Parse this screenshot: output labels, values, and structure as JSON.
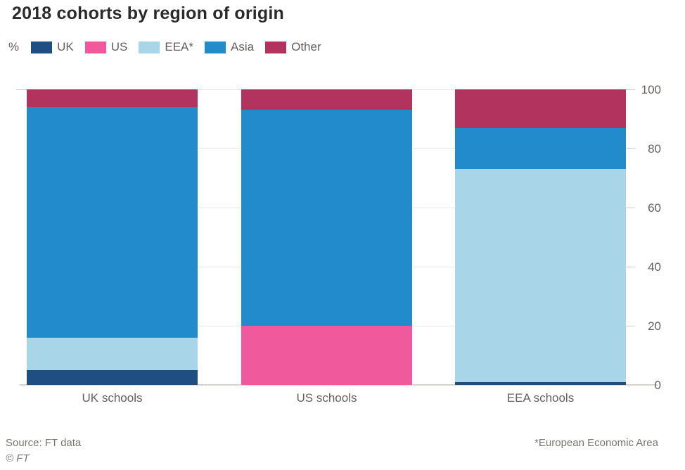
{
  "title": "2018 cohorts by region of origin",
  "unit_label": "%",
  "footer": {
    "source": "Source: FT data",
    "copyright": "© FT",
    "footnote": "*European Economic Area"
  },
  "colors": {
    "uk": "#1f4e82",
    "us": "#f05a9c",
    "eea": "#a8d6e8",
    "asia": "#228ccb",
    "other": "#b2345e",
    "gridline": "#ebe7e2",
    "axis_text": "#66605c",
    "title_text": "#2b2a28",
    "footer_text": "#79756f",
    "background": "#ffffff"
  },
  "chart_data": {
    "type": "bar",
    "subtype": "stacked-percentage",
    "title": "2018 cohorts by region of origin",
    "ylabel": "%",
    "xlabel": "",
    "categories": [
      "UK schools",
      "US schools",
      "EEA schools"
    ],
    "series": [
      {
        "name": "UK",
        "color": "#1f4e82",
        "values": [
          5,
          0,
          1
        ]
      },
      {
        "name": "US",
        "color": "#f05a9c",
        "values": [
          0,
          20,
          0
        ]
      },
      {
        "name": "EEA*",
        "color": "#a8d6e8",
        "values": [
          11,
          0,
          72
        ]
      },
      {
        "name": "Asia",
        "color": "#228ccb",
        "values": [
          78,
          73,
          14
        ]
      },
      {
        "name": "Other",
        "color": "#b2345e",
        "values": [
          6,
          7,
          13
        ]
      }
    ],
    "ylim": [
      0,
      100
    ],
    "yticks": [
      0,
      20,
      40,
      60,
      80,
      100
    ],
    "grid": true,
    "axis_side": "right",
    "legend_position": "top"
  }
}
